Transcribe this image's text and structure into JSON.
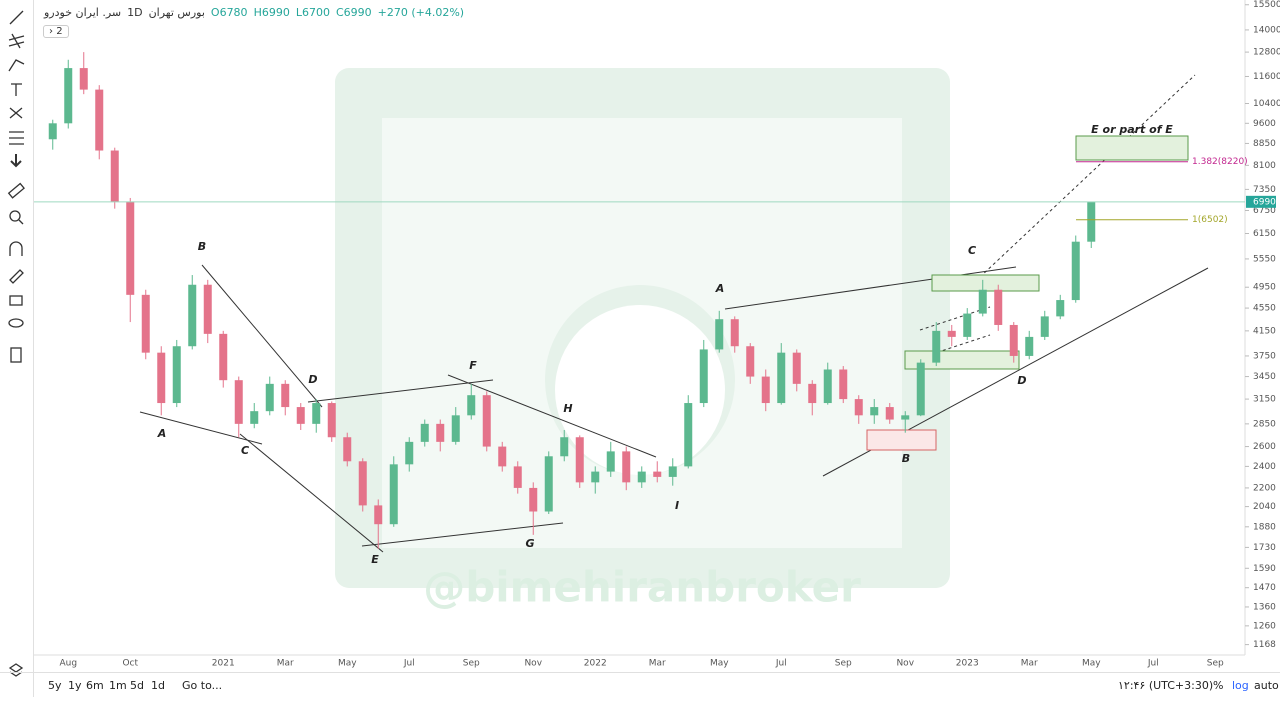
{
  "header": {
    "symbol": "سر. ایران خودرو",
    "interval": "1D",
    "exchange": "بورس تهران",
    "open": "O6780",
    "high": "H6990",
    "low": "L6700",
    "close": "C6990",
    "change": "+270 (+4.02%)",
    "badge": "2"
  },
  "toolbar": {
    "ranges": [
      "5y",
      "1y",
      "6m",
      "1m",
      "5d",
      "1d"
    ],
    "goto": "Go to...",
    "clock": "۱۲:۴۶ (UTC+3:30)",
    "percent": "%",
    "log": "log",
    "auto": "auto"
  },
  "watermark": "@bimehiranbroker",
  "chart_data": {
    "type": "candlestick",
    "log_scale": true,
    "grid": false,
    "categories": [
      null,
      "Aug",
      null,
      null,
      null,
      "Oct",
      null,
      null,
      null,
      null,
      null,
      "2021",
      null,
      null,
      null,
      "Mar",
      null,
      null,
      null,
      "May",
      null,
      null,
      null,
      "Jul",
      null,
      null,
      null,
      "Sep",
      null,
      null,
      null,
      "Nov",
      null,
      null,
      null,
      "2022",
      null,
      null,
      null,
      "Mar",
      null,
      null,
      null,
      "May",
      null,
      null,
      null,
      "Jul",
      null,
      null,
      null,
      "Sep",
      null,
      null,
      null,
      "Nov",
      null,
      null,
      null,
      "2023",
      null,
      null,
      null,
      "Mar",
      null,
      null,
      null,
      "May",
      null,
      null,
      null,
      "Jul",
      null,
      null,
      null,
      "Sep",
      null,
      null
    ],
    "open": [
      9000,
      9600,
      12000,
      11000,
      8600,
      7000,
      4800,
      3800,
      3100,
      3900,
      5000,
      4100,
      3400,
      2850,
      3000,
      3350,
      3050,
      2850,
      3100,
      2700,
      2450,
      2050,
      1900,
      2420,
      2650,
      2850,
      2650,
      2950,
      3200,
      2600,
      2400,
      2200,
      2000,
      2500,
      2700,
      2250,
      2350,
      2550,
      2250,
      2350,
      2300,
      2400,
      3100,
      3850,
      4350,
      3900,
      3450,
      3100,
      3800,
      3350,
      3100,
      3550,
      3150,
      2950,
      3050,
      2900,
      2950,
      3650,
      4150,
      4050,
      4450,
      4900,
      4250,
      3750,
      4050,
      4400,
      4700,
      5950,
      null,
      null,
      null,
      null,
      null,
      null,
      null,
      null,
      null,
      null
    ],
    "high": [
      9740,
      12410,
      12800,
      11200,
      8700,
      7100,
      4900,
      3900,
      4000,
      5200,
      5100,
      4150,
      3450,
      3100,
      3450,
      3400,
      3100,
      3150,
      3120,
      2750,
      2480,
      2100,
      2500,
      2700,
      2900,
      2900,
      3050,
      3350,
      3250,
      2650,
      2450,
      2250,
      2550,
      2780,
      2720,
      2400,
      2650,
      2600,
      2400,
      2450,
      2480,
      3200,
      4000,
      4500,
      4400,
      3950,
      3550,
      3950,
      3850,
      3400,
      3650,
      3600,
      3200,
      3150,
      3100,
      3000,
      3700,
      4300,
      4250,
      4550,
      5100,
      5000,
      4300,
      4150,
      4500,
      4800,
      6100,
      6990,
      null,
      null,
      null,
      null,
      null,
      null,
      null,
      null,
      null,
      null
    ],
    "low": [
      8630,
      9400,
      10800,
      8300,
      6800,
      4300,
      3700,
      2950,
      3050,
      3850,
      3950,
      3300,
      2700,
      2800,
      2950,
      2950,
      2780,
      2750,
      2650,
      2400,
      2000,
      1720,
      1880,
      2350,
      2600,
      2550,
      2620,
      2900,
      2550,
      2350,
      2150,
      1820,
      1980,
      2450,
      2200,
      2150,
      2300,
      2180,
      2200,
      2250,
      2220,
      2380,
      3050,
      3800,
      3800,
      3350,
      3000,
      3080,
      3250,
      2950,
      3080,
      3100,
      2850,
      2850,
      2850,
      2750,
      2940,
      3600,
      3900,
      4000,
      4400,
      4150,
      3650,
      3700,
      4000,
      4350,
      4650,
      5800,
      null,
      null,
      null,
      null,
      null,
      null,
      null,
      null,
      null,
      null
    ],
    "close": [
      9600,
      12000,
      11000,
      8600,
      7000,
      4800,
      3800,
      3100,
      3900,
      5000,
      4100,
      3400,
      2850,
      3000,
      3350,
      3050,
      2850,
      3100,
      2700,
      2450,
      2050,
      1900,
      2420,
      2650,
      2850,
      2650,
      2950,
      3200,
      2600,
      2400,
      2200,
      2000,
      2500,
      2700,
      2250,
      2350,
      2550,
      2250,
      2350,
      2300,
      2400,
      3100,
      3850,
      4350,
      3900,
      3450,
      3100,
      3800,
      3350,
      3100,
      3550,
      3150,
      2950,
      3050,
      2900,
      2950,
      3650,
      4150,
      4050,
      4450,
      4900,
      4250,
      3750,
      4050,
      4400,
      4700,
      5950,
      6990,
      null,
      null,
      null,
      null,
      null,
      null,
      null,
      null,
      null,
      null
    ],
    "up_color": "#5cb88f",
    "down_color": "#e4738a",
    "ylim": [
      1120,
      15800
    ],
    "yticks": [
      15500,
      14000,
      12800,
      11600,
      10400,
      9600,
      8850,
      8100,
      7350,
      6750,
      6150,
      5550,
      4950,
      4550,
      4150,
      3750,
      3450,
      3150,
      2850,
      2600,
      2400,
      2200,
      2040,
      1880,
      1730,
      1590,
      1470,
      1360,
      1260,
      1168
    ],
    "last_price": 6990,
    "levels": [
      {
        "value": 8220,
        "label": "1.382(8220)",
        "color": "#c2278f"
      },
      {
        "value": 6502,
        "label": "1(6502)",
        "color": "#a3a62a"
      }
    ],
    "annotations": [
      "B",
      "A",
      "C",
      "D",
      "E",
      "F",
      "G",
      "H",
      "I",
      "A",
      "B",
      "C",
      "D",
      "E or part of E"
    ]
  }
}
